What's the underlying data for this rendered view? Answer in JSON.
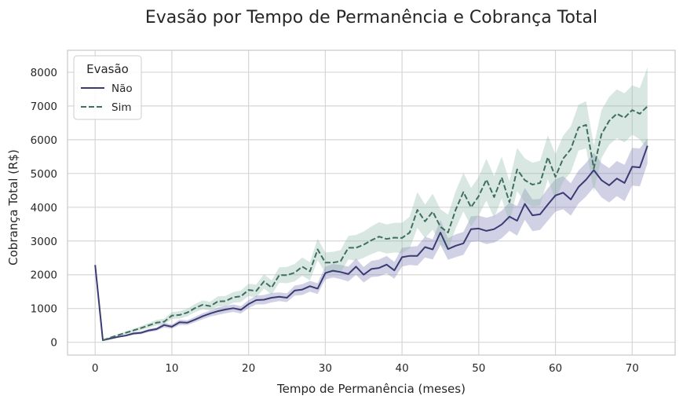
{
  "chart_data": {
    "type": "line",
    "title": "Evasão por Tempo de Permanência e Cobrança Total",
    "xlabel": "Tempo de Permanência (meses)",
    "ylabel": "Cobrança Total (R$)",
    "xlim": [
      -3.6,
      75.6
    ],
    "ylim": [
      -380,
      8650
    ],
    "xticks": [
      0,
      10,
      20,
      30,
      40,
      50,
      60,
      70
    ],
    "yticks": [
      0,
      1000,
      2000,
      3000,
      4000,
      5000,
      6000,
      7000,
      8000
    ],
    "grid": true,
    "legend": {
      "title": "Evasão",
      "position": "top-left"
    },
    "series": [
      {
        "name": "Não",
        "color": "#3b3b74",
        "dash": "solid",
        "band_color": "#7b7bb5",
        "x": [
          0,
          1,
          2,
          3,
          4,
          5,
          6,
          7,
          8,
          9,
          10,
          11,
          12,
          13,
          14,
          15,
          16,
          17,
          18,
          19,
          20,
          21,
          22,
          23,
          24,
          25,
          26,
          27,
          28,
          29,
          30,
          31,
          32,
          33,
          34,
          35,
          36,
          37,
          38,
          39,
          40,
          41,
          42,
          43,
          44,
          45,
          46,
          47,
          48,
          49,
          50,
          51,
          52,
          53,
          54,
          55,
          56,
          57,
          58,
          59,
          60,
          61,
          62,
          63,
          64,
          65,
          66,
          67,
          68,
          69,
          70,
          71,
          72
        ],
        "y": [
          2290,
          60,
          110,
          160,
          200,
          260,
          280,
          350,
          390,
          510,
          460,
          590,
          580,
          670,
          770,
          850,
          920,
          970,
          1010,
          960,
          1130,
          1250,
          1260,
          1320,
          1350,
          1320,
          1530,
          1560,
          1660,
          1590,
          2050,
          2120,
          2080,
          2020,
          2240,
          2000,
          2170,
          2200,
          2300,
          2130,
          2520,
          2560,
          2560,
          2820,
          2750,
          3250,
          2760,
          2860,
          2930,
          3350,
          3370,
          3300,
          3350,
          3490,
          3720,
          3600,
          4100,
          3760,
          3790,
          4080,
          4350,
          4430,
          4230,
          4600,
          4820,
          5100,
          4800,
          4650,
          4850,
          4720,
          5200,
          5180,
          5820
        ],
        "lower": [
          2290,
          50,
          100,
          140,
          180,
          220,
          240,
          300,
          340,
          440,
          400,
          510,
          510,
          590,
          680,
          760,
          810,
          860,
          900,
          850,
          1010,
          1120,
          1120,
          1180,
          1220,
          1190,
          1380,
          1400,
          1500,
          1430,
          1860,
          1920,
          1870,
          1800,
          2000,
          1770,
          1930,
          1950,
          2040,
          1880,
          2240,
          2290,
          2270,
          2510,
          2450,
          2880,
          2440,
          2520,
          2590,
          2970,
          2990,
          2910,
          2950,
          3080,
          3300,
          3160,
          3630,
          3290,
          3330,
          3600,
          3870,
          3940,
          3750,
          4110,
          4320,
          4590,
          4290,
          4140,
          4330,
          4180,
          4640,
          4620,
          5300
        ],
        "upper": [
          2290,
          70,
          120,
          180,
          220,
          300,
          320,
          400,
          440,
          580,
          520,
          670,
          650,
          750,
          860,
          940,
          1030,
          1080,
          1120,
          1070,
          1250,
          1380,
          1400,
          1460,
          1480,
          1450,
          1680,
          1720,
          1820,
          1750,
          2240,
          2320,
          2290,
          2240,
          2480,
          2230,
          2410,
          2450,
          2560,
          2380,
          2800,
          2830,
          2850,
          3130,
          3050,
          3620,
          3080,
          3200,
          3270,
          3730,
          3750,
          3690,
          3750,
          3900,
          4140,
          4040,
          4570,
          4230,
          4250,
          4560,
          4830,
          4920,
          4710,
          5090,
          5320,
          5610,
          5310,
          5160,
          5370,
          5260,
          5760,
          5740,
          6040
        ]
      },
      {
        "name": "Sim",
        "color": "#3f6f5e",
        "dash": "dashed",
        "band_color": "#8fbba8",
        "x": [
          1,
          2,
          3,
          4,
          5,
          6,
          7,
          8,
          9,
          10,
          11,
          12,
          13,
          14,
          15,
          16,
          17,
          18,
          19,
          20,
          21,
          22,
          23,
          24,
          25,
          26,
          27,
          28,
          29,
          30,
          31,
          32,
          33,
          34,
          35,
          36,
          37,
          38,
          39,
          40,
          41,
          42,
          43,
          44,
          45,
          46,
          47,
          48,
          49,
          50,
          51,
          52,
          53,
          54,
          55,
          56,
          57,
          58,
          59,
          60,
          61,
          62,
          63,
          64,
          65,
          66,
          67,
          68,
          69,
          70,
          71,
          72
        ],
        "y": [
          60,
          140,
          210,
          280,
          350,
          420,
          500,
          580,
          610,
          790,
          810,
          880,
          1010,
          1110,
          1070,
          1210,
          1220,
          1330,
          1360,
          1550,
          1520,
          1800,
          1620,
          1990,
          1990,
          2060,
          2240,
          2100,
          2750,
          2360,
          2360,
          2400,
          2800,
          2800,
          2890,
          3020,
          3130,
          3060,
          3100,
          3090,
          3250,
          3920,
          3580,
          3870,
          3420,
          3250,
          3930,
          4450,
          4000,
          4330,
          4820,
          4300,
          4880,
          4150,
          5120,
          4800,
          4670,
          4720,
          5480,
          4900,
          5440,
          5720,
          6360,
          6440,
          5150,
          6170,
          6560,
          6770,
          6650,
          6880,
          6770,
          6990
        ],
        "lower": [
          50,
          120,
          180,
          240,
          300,
          360,
          430,
          500,
          520,
          690,
          700,
          770,
          890,
          980,
          940,
          1060,
          1070,
          1170,
          1190,
          1370,
          1330,
          1590,
          1410,
          1760,
          1750,
          1800,
          1970,
          1830,
          2430,
          2060,
          2040,
          2070,
          2450,
          2420,
          2500,
          2610,
          2700,
          2630,
          2660,
          2640,
          2780,
          3390,
          3080,
          3340,
          2900,
          2720,
          3380,
          3880,
          3430,
          3760,
          4200,
          3680,
          4260,
          3530,
          4480,
          4150,
          4020,
          4060,
          4830,
          4230,
          4760,
          5040,
          5680,
          5740,
          4470,
          5460,
          5850,
          6050,
          5920,
          6150,
          6010,
          5700
        ],
        "upper": [
          70,
          160,
          240,
          320,
          400,
          480,
          570,
          660,
          700,
          890,
          920,
          990,
          1130,
          1240,
          1200,
          1360,
          1370,
          1490,
          1530,
          1730,
          1710,
          2010,
          1830,
          2220,
          2230,
          2320,
          2510,
          2370,
          3070,
          2660,
          2680,
          2730,
          3150,
          3180,
          3280,
          3430,
          3560,
          3490,
          3540,
          3540,
          3720,
          4450,
          4080,
          4400,
          3940,
          3780,
          4480,
          5020,
          4570,
          4900,
          5440,
          4920,
          5500,
          4770,
          5760,
          5450,
          5320,
          5380,
          6130,
          5570,
          6120,
          6400,
          7040,
          7140,
          5830,
          6880,
          7270,
          7490,
          7380,
          7610,
          7530,
          8150
        ]
      }
    ]
  }
}
